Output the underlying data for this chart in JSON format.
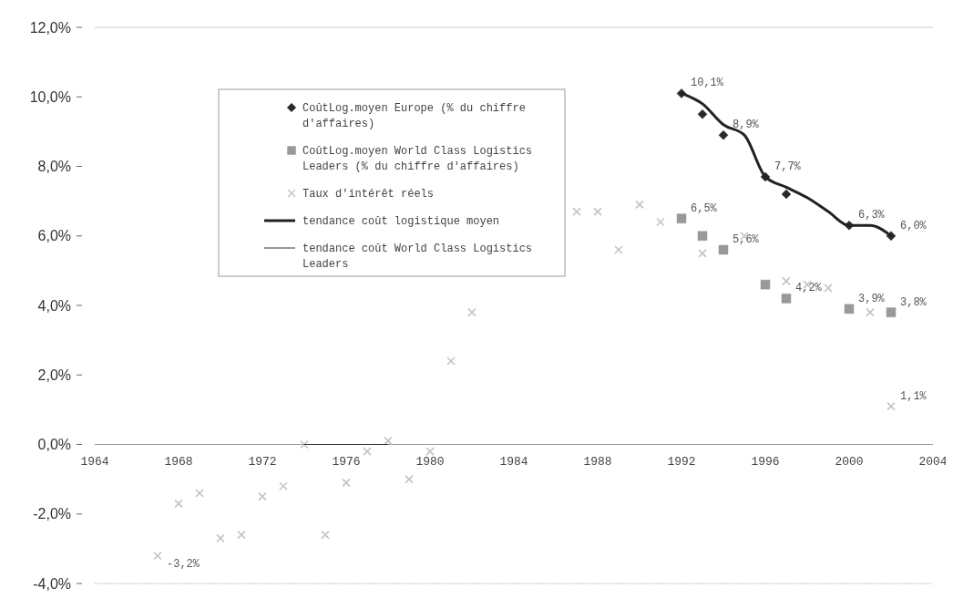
{
  "chart_data": {
    "type": "scatter",
    "xlim": [
      1964,
      2004
    ],
    "xticks": [
      1964,
      1968,
      1972,
      1976,
      1980,
      1984,
      1988,
      1992,
      1996,
      2000,
      2004
    ],
    "ylim": [
      -4,
      12
    ],
    "yticks": [
      {
        "value": -4,
        "label": "-4,0%"
      },
      {
        "value": -2,
        "label": "-2,0%"
      },
      {
        "value": 0,
        "label": "0,0%"
      },
      {
        "value": 2,
        "label": "2,0%"
      },
      {
        "value": 4,
        "label": "4,0%"
      },
      {
        "value": 6,
        "label": "6,0%"
      },
      {
        "value": 8,
        "label": "8,0%"
      },
      {
        "value": 10,
        "label": "10,0%"
      },
      {
        "value": 12,
        "label": "12,0%"
      }
    ],
    "grid": false,
    "legend": "top left",
    "series": [
      {
        "name": "CoûtLog.moyen Europe (% du chiffre d'affaires)",
        "marker": "diamond",
        "color": "#2a2a2a",
        "x": [
          1992,
          1993,
          1994,
          1996,
          1997,
          2000,
          2002
        ],
        "values": [
          10.1,
          9.5,
          8.9,
          7.7,
          7.2,
          6.3,
          6.0
        ],
        "value_labels": [
          "10,1%",
          null,
          "8,9%",
          "7,7%",
          null,
          "6,3%",
          "6,0%"
        ]
      },
      {
        "name": "CoûtLog.moyen World Class Logistics Leaders (% du chiffre d'affaires)",
        "marker": "square",
        "color": "#999999",
        "x": [
          1992,
          1993,
          1994,
          1996,
          1997,
          2000,
          2002
        ],
        "values": [
          6.5,
          6.0,
          5.6,
          4.6,
          4.2,
          3.9,
          3.8
        ],
        "value_labels": [
          "6,5%",
          null,
          "5,6%",
          null,
          "4,2%",
          "3,9%",
          "3,8%"
        ]
      },
      {
        "name": "Taux d'intérêt réels",
        "marker": "cross",
        "color": "#c4c4c4",
        "x": [
          1967,
          1968,
          1969,
          1970,
          1971,
          1972,
          1973,
          1974,
          1975,
          1976,
          1977,
          1978,
          1979,
          1980,
          1981,
          1982,
          1987,
          1988,
          1989,
          1990,
          1991,
          1993,
          1995,
          1997,
          1998,
          1999,
          2001,
          2002
        ],
        "values": [
          -3.2,
          -1.7,
          -1.4,
          -2.7,
          -2.6,
          -1.5,
          -1.2,
          0.0,
          -2.6,
          -1.1,
          -0.2,
          0.1,
          -1.0,
          -0.2,
          2.4,
          3.8,
          6.7,
          6.7,
          5.6,
          6.9,
          6.4,
          5.5,
          6.0,
          4.7,
          4.6,
          4.5,
          3.8,
          1.1
        ],
        "value_labels": [
          "-3,2%",
          null,
          null,
          null,
          null,
          null,
          null,
          null,
          null,
          null,
          null,
          null,
          null,
          null,
          null,
          null,
          null,
          null,
          null,
          null,
          null,
          null,
          null,
          null,
          null,
          null,
          null,
          "1,1%"
        ]
      },
      {
        "name": "tendance coût logistique moyen",
        "type": "line",
        "line_style": "solid",
        "marker": "none",
        "color": "#222222",
        "x": [
          1992,
          1993,
          1994,
          1995,
          1996,
          1997,
          1998,
          1999,
          2000,
          2001,
          2002
        ],
        "values": [
          10.1,
          9.8,
          9.2,
          8.9,
          7.7,
          7.4,
          7.1,
          6.7,
          6.3,
          6.3,
          6.0
        ]
      },
      {
        "name": "tendance coût World Class Logistics Leaders",
        "type": "line",
        "line_style": "solid",
        "marker": "none",
        "color": "#333333",
        "x": [
          1974,
          1978
        ],
        "values": [
          0,
          0
        ]
      }
    ]
  }
}
